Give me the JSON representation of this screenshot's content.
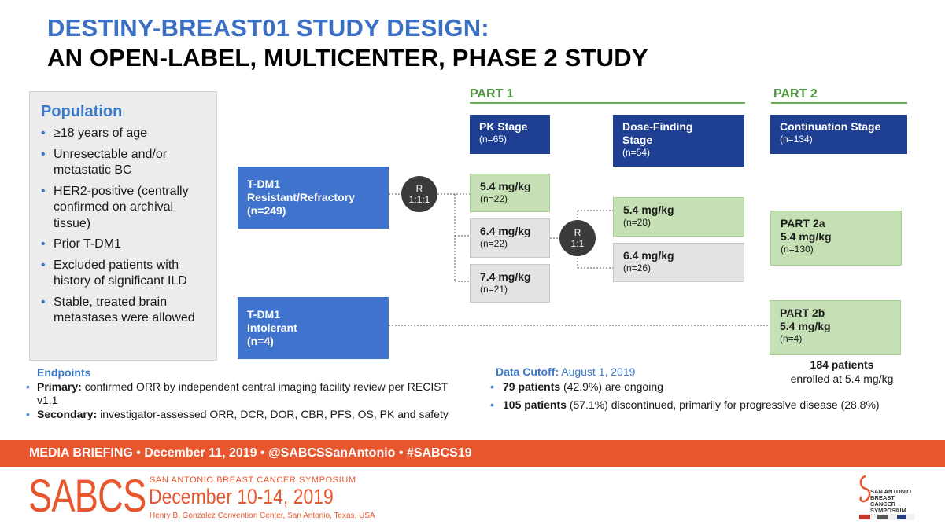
{
  "title": {
    "line1": "DESTINY-BREAST01 STUDY DESIGN:",
    "line2": "AN OPEN-LABEL, MULTICENTER, PHASE 2 STUDY"
  },
  "population": {
    "heading": "Population",
    "items": [
      "≥18 years of age",
      "Unresectable and/or metastatic BC",
      "HER2-positive (centrally confirmed on archival tissue)",
      "Prior T-DM1",
      "Excluded patients with history of significant ILD",
      "Stable, treated brain metastases were allowed"
    ]
  },
  "parts": {
    "part1": "PART 1",
    "part2": "PART 2"
  },
  "stages": {
    "pk": {
      "name": "PK Stage",
      "n": "(n=65)"
    },
    "dose_finding": {
      "name1": "Dose-Finding",
      "name2": "Stage",
      "n": "(n=54)"
    },
    "continuation": {
      "name": "Continuation Stage",
      "n": "(n=134)"
    }
  },
  "groups": {
    "resistant": {
      "l1": "T-DM1",
      "l2": "Resistant/Refractory",
      "l3": "(n=249)"
    },
    "intolerant": {
      "l1": "T-DM1",
      "l2": "Intolerant",
      "l3": "(n=4)"
    }
  },
  "randomization": {
    "r1": {
      "letter": "R",
      "ratio": "1:1:1"
    },
    "r2": {
      "letter": "R",
      "ratio": "1:1"
    }
  },
  "pk_arms": [
    {
      "dose": "5.4 mg/kg",
      "n": "(n=22)"
    },
    {
      "dose": "6.4 mg/kg",
      "n": "(n=22)"
    },
    {
      "dose": "7.4 mg/kg",
      "n": "(n=21)"
    }
  ],
  "df_arms": [
    {
      "dose": "5.4 mg/kg",
      "n": "(n=28)"
    },
    {
      "dose": "6.4 mg/kg",
      "n": "(n=26)"
    }
  ],
  "part2_arms": {
    "a": {
      "name": "PART 2a",
      "dose": "5.4 mg/kg",
      "n": "(n=130)"
    },
    "b": {
      "name": "PART 2b",
      "dose": "5.4 mg/kg",
      "n": "(n=4)"
    }
  },
  "enrollment": {
    "count": "184 patients",
    "desc": "enrolled at 5.4 mg/kg"
  },
  "endpoints": {
    "heading": "Endpoints",
    "primary_label": "Primary:",
    "primary_text": " confirmed ORR by independent central imaging facility review per RECIST v1.1",
    "secondary_label": "Secondary:",
    "secondary_text": " investigator-assessed ORR, DCR, DOR, CBR, PFS, OS, PK and safety"
  },
  "data_cutoff": {
    "label": "Data Cutoff:",
    "date": " August 1, 2019",
    "items": [
      {
        "bold": "79 patients",
        "text": " (42.9%) are ongoing"
      },
      {
        "bold": "105 patients",
        "text": " (57.1%) discontinued, primarily for progressive disease (28.8%)"
      }
    ]
  },
  "banner": "MEDIA BRIEFING  •  December 11, 2019  •  @SABCSSanAntonio  •  #SABCS19",
  "footer": {
    "logo": "SABCS",
    "symposium": "SAN ANTONIO BREAST CANCER SYMPOSIUM",
    "dates": "December 10-14, 2019",
    "venue": "Henry B. Gonzalez Convention Center, San Antonio, Texas, USA",
    "corner_text": [
      "SAN ANTONIO",
      "BREAST CANCER",
      "SYMPOSIUM"
    ]
  },
  "colors": {
    "title_blue": "#3b6fc4",
    "dark_navy": "#1f3f93",
    "mid_blue": "#3f73cd",
    "green_fill": "#c4e0b4",
    "part_green": "#4c9a3c",
    "banner_orange": "#e8562d"
  }
}
